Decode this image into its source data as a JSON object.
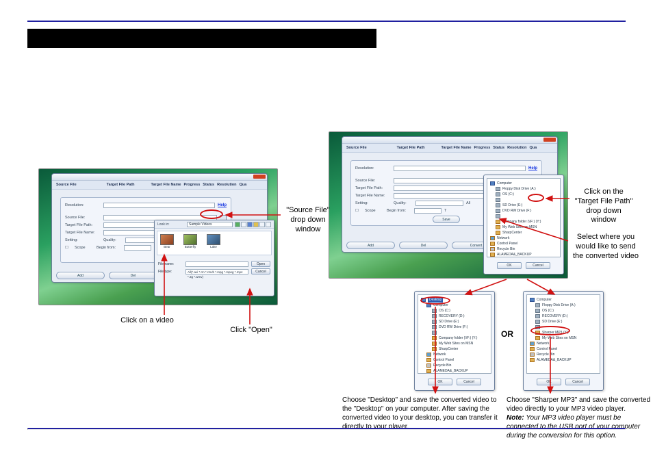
{
  "colors": {
    "rule": "#2020a0",
    "arrow": "#d11212",
    "ellipse": "#d11212"
  },
  "app": {
    "headers": [
      "Source File",
      "Target File Path",
      "Target File Name",
      "Progress",
      "Status",
      "Resolution",
      "Qua"
    ],
    "panel_fields": {
      "resolution": "Resolution:",
      "source_file": "Source File:",
      "target_path": "Target File Path:",
      "target_name": "Target File Name:",
      "setting": "Setting:",
      "quality": "Quality:",
      "scope": "Scope",
      "begin": "Begin from:",
      "help": "Help",
      "save": "Save"
    },
    "buttons": {
      "add": "Add",
      "del": "Del",
      "convert": "Convert",
      "stop": "Stop"
    }
  },
  "file_dialog": {
    "look_in": "Look in:",
    "path": "Sample Videos",
    "thumbs": [
      "Bear",
      "Butterfly",
      "Lake"
    ],
    "file_name_lbl": "File name:",
    "file_type_lbl": "File type:",
    "file_types": "All(*.avi *.rm *.rmvb *.mpg *.mpeg *.mp4 *.3g *.wmv)",
    "open": "Open",
    "cancel": "Cancel"
  },
  "folder_dialog": {
    "items_main": [
      {
        "t": "Computer",
        "cls": "comp",
        "ind": ""
      },
      {
        "t": "Floppy Disk Drive (A:)",
        "cls": "drive",
        "ind": "ind1"
      },
      {
        "t": "OS (C:)",
        "cls": "drive",
        "ind": "ind1"
      },
      {
        "t": "",
        "cls": "drive",
        "ind": "ind1",
        "blank": true
      },
      {
        "t": "SD Drive (E:)",
        "cls": "drive",
        "ind": "ind1"
      },
      {
        "t": "DVD RW Drive (F:)",
        "cls": "drive",
        "ind": "ind1"
      },
      {
        "t": "",
        "cls": "drive",
        "ind": "ind1",
        "blank": true
      },
      {
        "t": "Company folder (\\\\F:) (Y:)",
        "cls": "",
        "ind": "ind1"
      },
      {
        "t": "My Web Sites on MSN",
        "cls": "",
        "ind": "ind1"
      },
      {
        "t": "SharpCenter",
        "cls": "",
        "ind": "ind1"
      },
      {
        "t": "Network",
        "cls": "net",
        "ind": ""
      },
      {
        "t": "Control Panel",
        "cls": "",
        "ind": ""
      },
      {
        "t": "Recycle Bin",
        "cls": "bin",
        "ind": ""
      },
      {
        "t": "ALAMEDA&_BACKUP",
        "cls": "",
        "ind": ""
      }
    ],
    "items_left": [
      {
        "t": "Desktop",
        "cls": "comp",
        "ind": "",
        "hl": true
      },
      {
        "t": "Computer",
        "cls": "comp",
        "ind": "ind1"
      },
      {
        "t": "OS (C:)",
        "cls": "drive",
        "ind": "ind2"
      },
      {
        "t": "RECOVERY (D:)",
        "cls": "drive",
        "ind": "ind2"
      },
      {
        "t": "SD Drive (E:)",
        "cls": "drive",
        "ind": "ind2"
      },
      {
        "t": "DVD RW Drive (F:)",
        "cls": "drive",
        "ind": "ind2"
      },
      {
        "t": "",
        "cls": "drive",
        "ind": "ind2",
        "blank": true
      },
      {
        "t": "Company folder (\\\\F:) (Y:)",
        "cls": "",
        "ind": "ind2"
      },
      {
        "t": "My Web Sites on MSN",
        "cls": "",
        "ind": "ind2"
      },
      {
        "t": "SharpCenter",
        "cls": "",
        "ind": "ind2"
      },
      {
        "t": "Network",
        "cls": "net",
        "ind": "ind1"
      },
      {
        "t": "Control Panel",
        "cls": "",
        "ind": "ind1"
      },
      {
        "t": "Recycle Bin",
        "cls": "bin",
        "ind": "ind1"
      },
      {
        "t": "ALAMEDA&_BACKUP",
        "cls": "",
        "ind": "ind1"
      }
    ],
    "items_right": [
      {
        "t": "Computer",
        "cls": "comp",
        "ind": ""
      },
      {
        "t": "Floppy Disk Drive (A:)",
        "cls": "drive",
        "ind": "ind1"
      },
      {
        "t": "OS (C:)",
        "cls": "drive",
        "ind": "ind1"
      },
      {
        "t": "RECOVERY (D:)",
        "cls": "drive",
        "ind": "ind1"
      },
      {
        "t": "SD Drive (E:)",
        "cls": "drive",
        "ind": "ind1"
      },
      {
        "t": "",
        "cls": "drive",
        "ind": "ind1",
        "blank": true
      },
      {
        "t": "Sharper MP3 (Y:)",
        "cls": "",
        "ind": "ind1",
        "hl": false
      },
      {
        "t": "My Web Sites on MSN",
        "cls": "",
        "ind": "ind1"
      },
      {
        "t": "Network",
        "cls": "net",
        "ind": ""
      },
      {
        "t": "Control Panel",
        "cls": "",
        "ind": ""
      },
      {
        "t": "Recycle Bin",
        "cls": "bin",
        "ind": ""
      },
      {
        "t": "ALAMEDA&_BACKUP",
        "cls": "",
        "ind": ""
      }
    ],
    "ok": "OK",
    "cancel": "Cancel"
  },
  "callouts": {
    "source_file": "\"Source File\"\ndrop down\nwindow",
    "click_video": "Click on a video",
    "click_open": "Click \"Open\"",
    "target_path": "Click on the\n\"Target File Path\"\ndrop down\nwindow",
    "select_where": "Select where you\nwould like to send\nthe converted video",
    "or": "OR",
    "choose_desktop": "Choose \"Desktop\" and save the converted video to the \"Desktop\" on your computer. After saving the converted video to your desktop, you can transfer it directly to your player.",
    "choose_sharper_line1": "Choose \"Sharper  MP3\" and save the converted video directly to your MP3 video player.",
    "choose_sharper_note": "Your MP3 video player must be connected to the USB port of your computer during the conversion for this option."
  }
}
